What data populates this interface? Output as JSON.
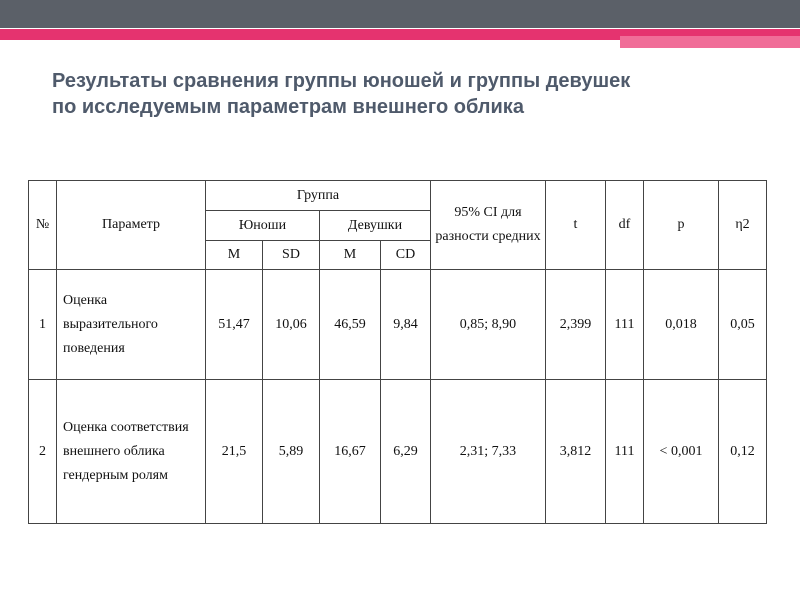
{
  "header": {
    "title": [
      "Результаты сравнения группы юношей и группы девушек",
      "по исследуемым параметрам внешнего облика"
    ]
  },
  "table": {
    "head": {
      "number": "№",
      "parameter": "Параметр",
      "group": "Группа",
      "boys": "Юноши",
      "girls": "Девушки",
      "ci": "95% CI для разности средних",
      "t": "t",
      "df": "df",
      "p": "p",
      "eta": "η2",
      "sub": [
        "M",
        "SD",
        "M",
        "CD"
      ]
    },
    "rows": [
      [
        "1",
        "Оценка выразительного поведения",
        "51,47",
        "10,06",
        "46,59",
        "9,84",
        "0,85; 8,90",
        "2,399",
        "111",
        "0,018",
        "0,05"
      ],
      [
        "2",
        "Оценка соответствия внешнего облика гендерным ролям",
        "21,5",
        "5,89",
        "16,67",
        "6,29",
        "2,31; 7,33",
        "3,812",
        "111",
        "< 0,001",
        "0,12"
      ]
    ]
  }
}
